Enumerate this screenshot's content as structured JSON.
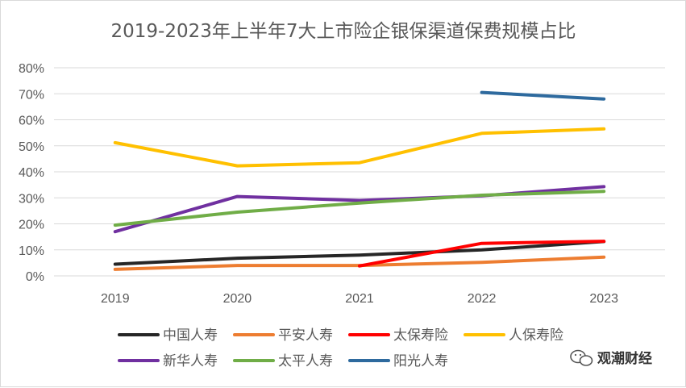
{
  "chart_data": {
    "type": "line",
    "title": "2019-2023年上半年7大上市险企银保渠道保费规模占比",
    "xlabel": "",
    "ylabel": "",
    "categories": [
      "2019",
      "2020",
      "2021",
      "2022",
      "2023"
    ],
    "ylim": [
      0,
      0.8
    ],
    "y_ticks": [
      "0%",
      "10%",
      "20%",
      "30%",
      "40%",
      "50%",
      "60%",
      "70%",
      "80%"
    ],
    "grid": true,
    "legend_position": "bottom",
    "series": [
      {
        "name": "中国人寿",
        "color": "#262626",
        "values": [
          0.045,
          0.068,
          0.08,
          0.1,
          0.132
        ]
      },
      {
        "name": "平安人寿",
        "color": "#ED7D31",
        "values": [
          0.025,
          0.04,
          0.04,
          0.052,
          0.072
        ]
      },
      {
        "name": "太保寿险",
        "color": "#FF0000",
        "values": [
          null,
          null,
          0.038,
          0.125,
          0.133
        ]
      },
      {
        "name": "人保寿险",
        "color": "#FFC000",
        "values": [
          0.512,
          0.423,
          0.435,
          0.548,
          0.565
        ]
      },
      {
        "name": "新华人寿",
        "color": "#7030A0",
        "values": [
          0.17,
          0.305,
          0.29,
          0.308,
          0.343
        ]
      },
      {
        "name": "太平人寿",
        "color": "#70AD47",
        "values": [
          0.195,
          0.245,
          0.28,
          0.31,
          0.325
        ]
      },
      {
        "name": "阳光人寿",
        "color": "#2E6A9E",
        "values": [
          null,
          null,
          null,
          0.705,
          0.68
        ]
      }
    ]
  },
  "watermark": {
    "text": "观潮财经",
    "icon": "wechat-icon"
  }
}
